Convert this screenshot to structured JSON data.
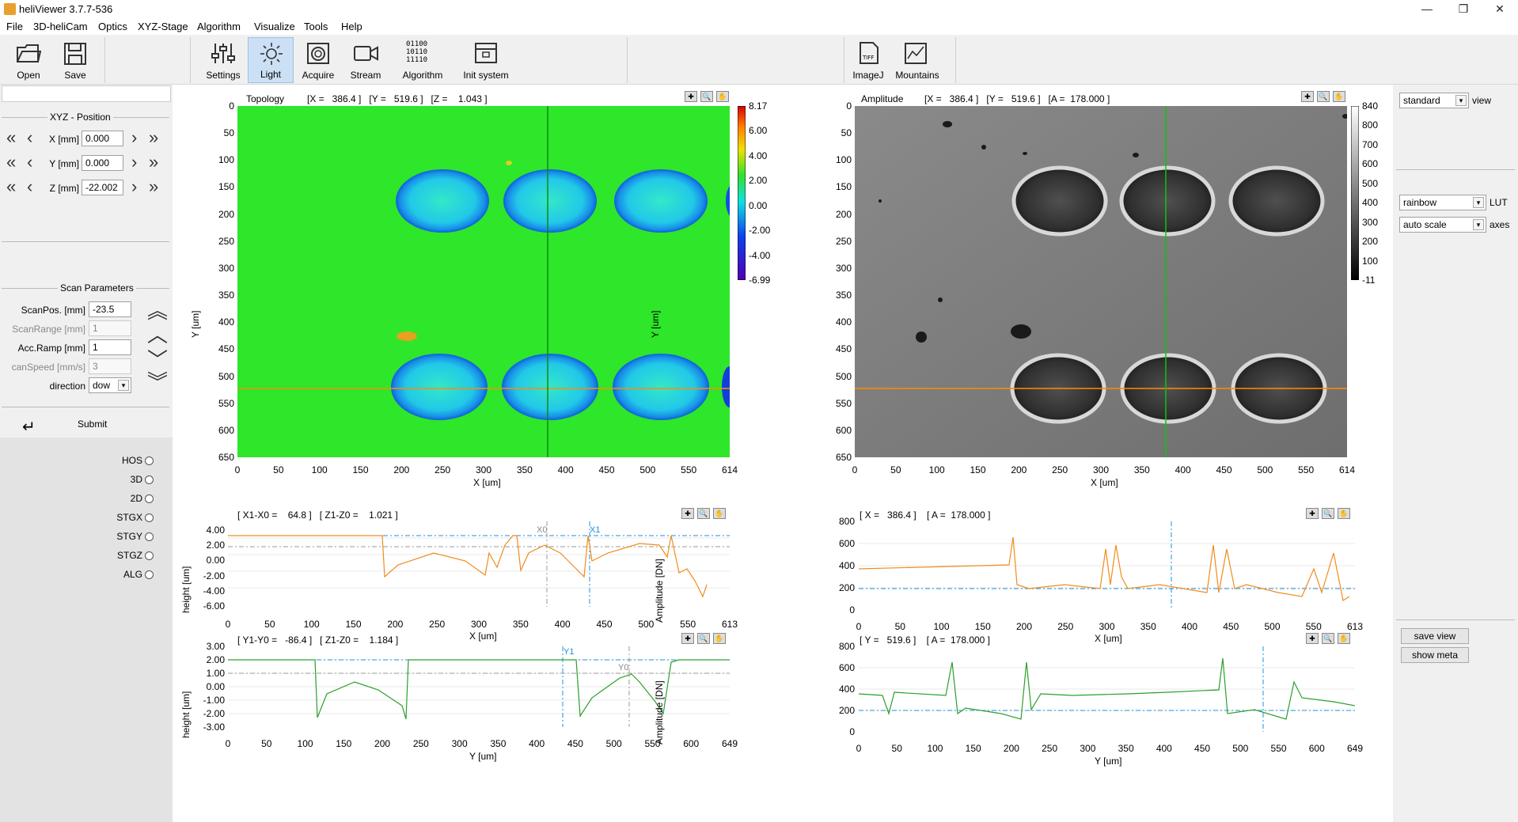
{
  "app": {
    "title": "heliViewer 3.7.7-536",
    "minimize": "—",
    "restore": "❐",
    "close": "✕"
  },
  "menu": [
    "File",
    "3D-heliCam",
    "Optics",
    "XYZ-Stage",
    "Algorithm",
    "Visualize",
    "Tools",
    "Help"
  ],
  "toolbar": {
    "open": "Open",
    "save": "Save",
    "settings": "Settings",
    "light": "Light",
    "acquire": "Acquire",
    "stream": "Stream",
    "algorithm": "Algorithm",
    "algo_bits": "01100\n10110\n11110",
    "init": "Init system",
    "imagej": "ImageJ",
    "imagej_badge": "TIFF",
    "mountains": "Mountains"
  },
  "xyz": {
    "title": "XYZ - Position",
    "x_label": "X [mm]",
    "x_value": "0.000",
    "y_label": "Y [mm]",
    "y_value": "0.000",
    "z_label": "Z [mm]",
    "z_value": "-22.002"
  },
  "scan": {
    "title": "Scan Parameters",
    "scanpos_label": "ScanPos. [mm]",
    "scanpos": "-23.5",
    "scanrange_label": "ScanRange [mm]",
    "scanrange": "1",
    "accramp_label": "Acc.Ramp [mm]",
    "accramp": "1",
    "canspeed_label": "canSpeed [mm/s]",
    "canspeed": "3",
    "direction_label": "direction",
    "direction": "dow",
    "submit": "Submit"
  },
  "modes": [
    "HOS",
    "3D",
    "2D",
    "STGX",
    "STGY",
    "STGZ",
    "ALG"
  ],
  "right": {
    "view_select": "standard",
    "view_label": "view",
    "lut_select": "rainbow",
    "lut_label": "LUT",
    "axes_select": "auto scale",
    "axes_label": "axes",
    "save_view": "save view",
    "show_meta": "show meta"
  },
  "topology": {
    "title": "Topology",
    "readout": "[X =   386.4 ]   [Y =   519.6 ]   [Z =    1.043 ]",
    "xlabel": "X [um]",
    "ylabel": "Y [um]",
    "xticks": [
      "0",
      "50",
      "100",
      "150",
      "200",
      "250",
      "300",
      "350",
      "400",
      "450",
      "500",
      "550",
      "614"
    ],
    "yticks": [
      "0",
      "50",
      "100",
      "150",
      "200",
      "250",
      "300",
      "350",
      "400",
      "450",
      "500",
      "550",
      "600",
      "650"
    ],
    "colorbar": [
      "8.17",
      "6.00",
      "4.00",
      "2.00",
      "0.00",
      "-2.00",
      "-4.00",
      "-6.99"
    ]
  },
  "amplitude": {
    "title": "Amplitude",
    "readout": "[X =   386.4 ]   [Y =   519.6 ]   [A =  178.000 ]",
    "xlabel": "X [um]",
    "ylabel": "Y [um]",
    "xticks": [
      "0",
      "50",
      "100",
      "150",
      "200",
      "250",
      "300",
      "350",
      "400",
      "450",
      "500",
      "550",
      "614"
    ],
    "yticks": [
      "0",
      "50",
      "100",
      "150",
      "200",
      "250",
      "300",
      "350",
      "400",
      "450",
      "500",
      "550",
      "600",
      "650"
    ],
    "colorbar": [
      "840",
      "800",
      "700",
      "600",
      "500",
      "400",
      "300",
      "200",
      "100",
      "-11"
    ]
  },
  "profile_x": {
    "readout": "[ X1-X0 =    64.8 ]   [ Z1-Z0 =    1.021 ]",
    "xlabel": "X [um]",
    "ylabel": "height [um]",
    "markers": [
      "X0",
      "X1"
    ],
    "xticks": [
      "0",
      "50",
      "100",
      "150",
      "200",
      "250",
      "300",
      "350",
      "400",
      "450",
      "500",
      "550",
      "613"
    ],
    "yticks": [
      "4.00",
      "2.00",
      "0.00",
      "-2.00",
      "-4.00",
      "-6.00"
    ]
  },
  "profile_y": {
    "readout": "[ Y1-Y0 =   -86.4 ]   [ Z1-Z0 =    1.184 ]",
    "xlabel": "Y [um]",
    "ylabel": "height [um]",
    "markers": [
      "Y1",
      "Y0"
    ],
    "xticks": [
      "0",
      "50",
      "100",
      "150",
      "200",
      "250",
      "300",
      "350",
      "400",
      "450",
      "500",
      "550",
      "600",
      "649"
    ],
    "yticks": [
      "3.00",
      "2.00",
      "1.00",
      "0.00",
      "-1.00",
      "-2.00",
      "-3.00"
    ]
  },
  "amp_x": {
    "readout": "[ X =   386.4 ]    [ A =  178.000 ]",
    "xlabel": "X [um]",
    "ylabel": "Amplitude [DN]",
    "xticks": [
      "0",
      "50",
      "100",
      "150",
      "200",
      "250",
      "300",
      "350",
      "400",
      "450",
      "500",
      "550",
      "613"
    ],
    "yticks": [
      "800",
      "600",
      "400",
      "200",
      "0"
    ]
  },
  "amp_y": {
    "readout": "[ Y =   519.6 ]    [ A =  178.000 ]",
    "xlabel": "Y [um]",
    "ylabel": "Amplitude [DN]",
    "xticks": [
      "0",
      "50",
      "100",
      "150",
      "200",
      "250",
      "300",
      "350",
      "400",
      "450",
      "500",
      "550",
      "600",
      "649"
    ],
    "yticks": [
      "800",
      "600",
      "400",
      "200",
      "0"
    ]
  },
  "colors": {
    "orange": "#f08c1e",
    "green": "#2aa02a",
    "cursor_blue": "#1e90e0",
    "topo_bg": "#2ee62a"
  }
}
